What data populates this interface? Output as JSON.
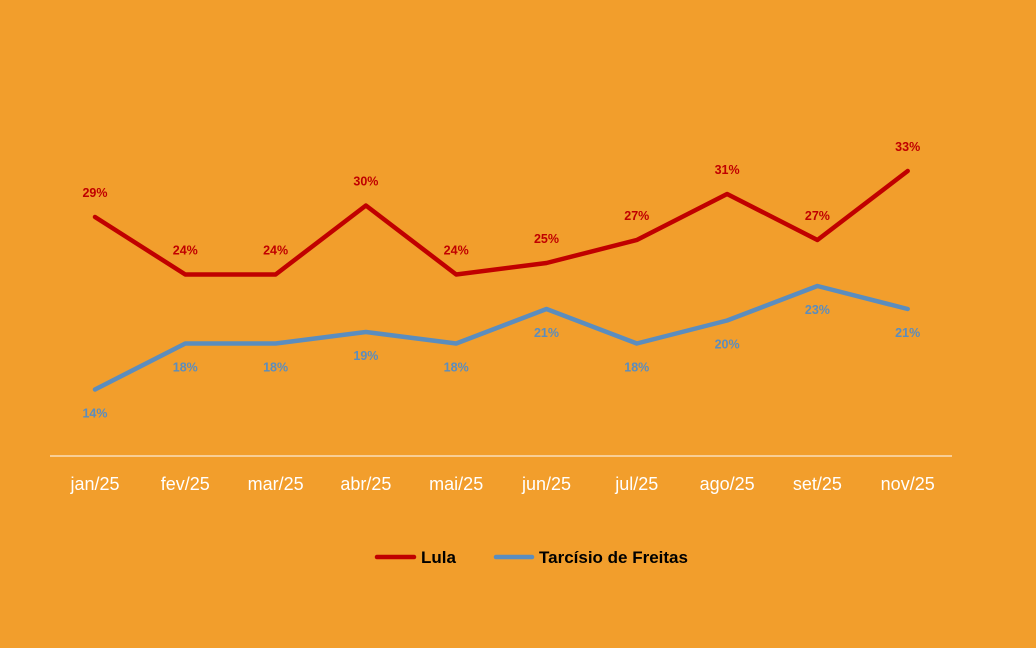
{
  "chart_data": {
    "type": "line",
    "title": "",
    "xlabel": "",
    "ylabel": "",
    "categories": [
      "jan/25",
      "fev/25",
      "mar/25",
      "abr/25",
      "mai/25",
      "jun/25",
      "jul/25",
      "ago/25",
      "set/25",
      "nov/25"
    ],
    "series": [
      {
        "name": "Lula",
        "color": "#C00000",
        "values": [
          29,
          24,
          24,
          30,
          24,
          25,
          27,
          31,
          27,
          33
        ],
        "labels": [
          "29%",
          "24%",
          "24%",
          "30%",
          "24%",
          "25%",
          "27%",
          "31%",
          "27%",
          "33%"
        ],
        "label_position": "above"
      },
      {
        "name": "Tarcísio de Freitas",
        "color": "#5B8DBE",
        "values": [
          14,
          18,
          18,
          19,
          18,
          21,
          18,
          20,
          23,
          21
        ],
        "labels": [
          "14%",
          "18%",
          "18%",
          "19%",
          "18%",
          "21%",
          "18%",
          "20%",
          "23%",
          "21%"
        ],
        "label_position": "below"
      }
    ],
    "ylim": [
      0,
      40
    ],
    "grid": false,
    "legend": "bottom",
    "axis_color": "#FFFFFF",
    "background": "#F29E2C"
  }
}
